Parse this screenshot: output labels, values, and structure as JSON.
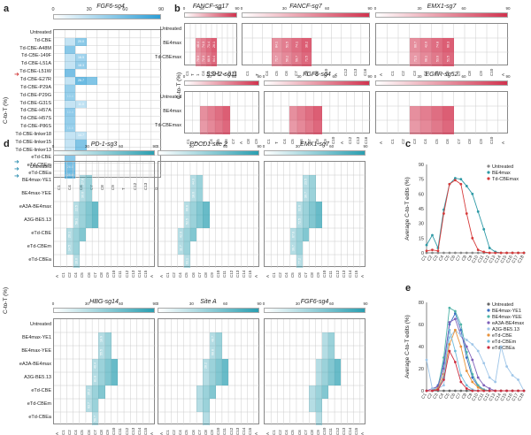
{
  "figure": {
    "letters": {
      "a": "a",
      "b": "b",
      "c": "c",
      "d": "d",
      "e": "e"
    },
    "ctot_label": "C-to-T (%)",
    "scale_ticks": [
      "0",
      "30",
      "60",
      "90"
    ]
  },
  "panel_a": {
    "title": "FGF6-sg4",
    "rows": [
      "Untreated",
      "Td-CBE",
      "Td-CBE-A48M",
      "Td-CBE-149F",
      "Td-CBE-L51A",
      "Td-CBE-L51W",
      "Td-CBE-E27R",
      "Td-CBE-P29A",
      "Td-CBE-P29G",
      "Td-CBE-G31S",
      "Td-CBE-H57A",
      "Td-CBE-H57S",
      "Td-CBE-P86S",
      "Td-CBE-linker18",
      "Td-CBE-linker15",
      "Td-CBE-linker13",
      "eTd-CBE",
      "eTd-CBEm",
      "eTd-CBEa"
    ],
    "columns": [
      "C1",
      "C4",
      "C6",
      "C7",
      "C8",
      "C9",
      "T",
      "C12",
      "C13",
      "G"
    ],
    "cell_values": [
      "20.0",
      "16.5",
      "18.3",
      "26.7",
      "10.4",
      "14.7",
      "26.0",
      "25.6",
      "11.0",
      "10.4",
      "16.8",
      "54.1"
    ]
  },
  "panel_b": {
    "titles": [
      "FANCF-sg17",
      "FANCF-sg7",
      "EMX1-sg7",
      "SSH2-sg11",
      "FGF6-sg4",
      "EGFR-sg52"
    ],
    "rows": [
      "Untreated",
      "BE4max",
      "Td-CBEmax"
    ],
    "columns_1": [
      "C1",
      "T",
      "1",
      "C4",
      "C5",
      "C6",
      "C7",
      "A",
      "C8",
      "C9"
    ],
    "columns_2": [
      "C1",
      "T",
      "C4",
      "C5",
      "C6",
      "C7",
      "C8",
      "C9",
      "C10",
      "A",
      "C12",
      "C13",
      "C16"
    ],
    "columns_3": [
      "A",
      "C1",
      "C2",
      "C3",
      "C4",
      "C5",
      "C6",
      "C7",
      "C8",
      "C9",
      "C10",
      "A"
    ],
    "cell_values": [
      "46.4",
      "70.3",
      "74.3",
      "72.3",
      "71.4",
      "60.9",
      "26.1",
      "64.4",
      "84.1",
      "71.7",
      "51.5",
      "50.2",
      "74.1",
      "59.7",
      "36.2",
      "71.5",
      "60.7",
      "71.3",
      "42.0",
      "68.1",
      "74.8",
      "53.6",
      "60.3",
      "51.5"
    ]
  },
  "panel_c": {
    "ylabel": "Average C-to-T edits (%)",
    "legend": [
      "Untreated",
      "BE4max",
      "Td-CBEmax"
    ],
    "yticks": [
      "0",
      "15",
      "30",
      "45",
      "60",
      "75",
      "90"
    ]
  },
  "panel_d": {
    "titles": [
      "PD-1-sg3",
      "PDCD1 site 2",
      "EMX1-sg7",
      "HBG-sg14",
      "Site A",
      "FGF6-sg4"
    ],
    "rows": [
      "Untreated",
      "BE4max-YE1",
      "BE4max-YEE",
      "eA3A-BE4max",
      "A3G-BE5.13",
      "eTd-CBE",
      "eTd-CBEm",
      "eTd-CBEa"
    ],
    "columns": [
      "A",
      "C1",
      "C2",
      "C4",
      "C5",
      "C6",
      "C7",
      "C8",
      "C9",
      "C10",
      "C11",
      "C12",
      "C13",
      "C14",
      "C15",
      "A"
    ],
    "cell_values": [
      "27.8",
      "30.6",
      "22.5",
      "58.1",
      "20.1",
      "14.5",
      "16.0",
      "44.3",
      "18.6",
      "66.6",
      "52.5",
      "42.9",
      "11.7",
      "63.1",
      "23.5",
      "30.7",
      "31.6",
      "72.5",
      "67.6",
      "39.7",
      "77.2",
      "18.9",
      "55.5",
      "40.4",
      "81.8",
      "35.2",
      "63.7",
      "56.7",
      "48.7",
      "68.8",
      "28.2"
    ]
  },
  "panel_e": {
    "ylabel": "Average C-to-T edits (%)",
    "legend": [
      "Untreated",
      "BE4max-YE1",
      "BE4max-YEE",
      "eA3A-BE4max",
      "A3G-BE5.13",
      "eTd-CBE",
      "eTd-CBEm",
      "eTd-CBEa"
    ],
    "yticks": [
      "0",
      "20",
      "40",
      "60",
      "80"
    ]
  },
  "chart_data": [
    {
      "type": "line",
      "panel": "c",
      "x": [
        "C1",
        "C2",
        "C3",
        "C4",
        "C5",
        "C6",
        "C7",
        "C8",
        "C9",
        "C10",
        "C11",
        "C12",
        "C13",
        "C14",
        "C15",
        "C16",
        "C17",
        "C18"
      ],
      "ylim": [
        0,
        90
      ],
      "ylabel": "Average C-to-T edits (%)",
      "series": [
        {
          "name": "Untreated",
          "color": "#888888",
          "values": [
            0,
            0,
            0,
            0,
            0,
            0,
            0,
            0,
            0,
            0,
            0,
            0,
            0,
            0,
            0,
            0,
            0,
            0
          ]
        },
        {
          "name": "BE4max",
          "color": "#2e9aa6",
          "values": [
            8,
            18,
            5,
            44,
            70,
            76,
            75,
            68,
            60,
            42,
            24,
            5,
            1,
            0,
            0,
            0,
            0,
            0
          ]
        },
        {
          "name": "Td-CBEmax",
          "color": "#d63a3a",
          "values": [
            2,
            3,
            2,
            40,
            70,
            74,
            70,
            40,
            15,
            3,
            1,
            0,
            0,
            0,
            0,
            0,
            0,
            0
          ]
        }
      ]
    },
    {
      "type": "line",
      "panel": "e",
      "x": [
        "C1",
        "C2",
        "C3",
        "C4",
        "C5",
        "C6",
        "C7",
        "C8",
        "C9",
        "C10",
        "C11",
        "C12",
        "C13",
        "C14",
        "C15",
        "C16",
        "C17",
        "C18"
      ],
      "ylim": [
        0,
        80
      ],
      "ylabel": "Average C-to-T edits (%)",
      "series": [
        {
          "name": "Untreated",
          "color": "#666666",
          "values": [
            0,
            0,
            0,
            0,
            0,
            0,
            0,
            0,
            0,
            0,
            0,
            0,
            0,
            0,
            0,
            0,
            0,
            0
          ]
        },
        {
          "name": "BE4max-YE1",
          "color": "#3a6ec4",
          "values": [
            0,
            0,
            5,
            25,
            60,
            70,
            55,
            30,
            12,
            4,
            1,
            0,
            0,
            0,
            0,
            0,
            0,
            0
          ]
        },
        {
          "name": "BE4max-YEE",
          "color": "#4fb3a8",
          "values": [
            0,
            0,
            3,
            30,
            75,
            72,
            60,
            35,
            15,
            5,
            1,
            0,
            0,
            0,
            0,
            0,
            0,
            0
          ]
        },
        {
          "name": "eA3A-BE4max",
          "color": "#7d5fb8",
          "values": [
            0,
            2,
            4,
            20,
            62,
            65,
            50,
            40,
            28,
            12,
            5,
            2,
            0,
            0,
            0,
            0,
            0,
            0
          ]
        },
        {
          "name": "A3G-BE5.13",
          "color": "#9ec5e8",
          "values": [
            28,
            2,
            2,
            5,
            48,
            55,
            50,
            46,
            42,
            36,
            25,
            12,
            8,
            40,
            22,
            14,
            10,
            0
          ]
        },
        {
          "name": "eTd-CBE",
          "color": "#e8923a",
          "values": [
            0,
            0,
            2,
            15,
            42,
            55,
            40,
            18,
            8,
            3,
            0,
            0,
            0,
            0,
            0,
            0,
            0,
            0
          ]
        },
        {
          "name": "eTd-CBEm",
          "color": "#6fbcdc",
          "values": [
            0,
            0,
            1,
            12,
            55,
            36,
            14,
            5,
            1,
            0,
            0,
            0,
            0,
            0,
            0,
            0,
            0,
            0
          ]
        },
        {
          "name": "eTd-CBEa",
          "color": "#cc2d3e",
          "values": [
            0,
            0,
            1,
            10,
            36,
            26,
            8,
            2,
            0,
            0,
            0,
            0,
            0,
            0,
            0,
            0,
            0,
            0
          ]
        }
      ]
    }
  ]
}
